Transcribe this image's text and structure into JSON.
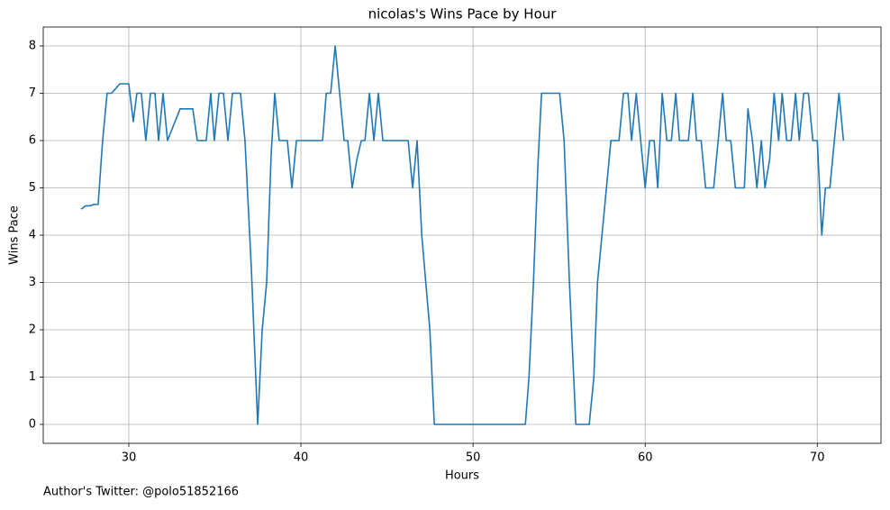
{
  "chart_data": {
    "type": "line",
    "title": "nicolas's Wins Pace by Hour",
    "xlabel": "Hours",
    "ylabel": "Wins Pace",
    "annotation": "Author's Twitter: @polo51852166",
    "x": [
      27.23,
      27.49,
      27.75,
      27.96,
      28.22,
      28.48,
      28.74,
      29.0,
      29.48,
      30.0,
      30.26,
      30.47,
      30.73,
      30.99,
      31.26,
      31.52,
      31.73,
      31.99,
      32.25,
      32.98,
      33.72,
      33.98,
      34.5,
      34.76,
      34.97,
      35.24,
      35.5,
      35.76,
      36.02,
      36.49,
      36.75,
      37.12,
      37.49,
      37.75,
      38.01,
      38.27,
      38.48,
      38.74,
      39.21,
      39.48,
      39.74,
      41.26,
      41.47,
      41.73,
      41.99,
      42.25,
      42.51,
      42.72,
      42.98,
      43.25,
      43.51,
      43.72,
      43.98,
      44.24,
      44.5,
      44.76,
      46.23,
      46.49,
      46.75,
      47.02,
      47.49,
      47.75,
      53.04,
      53.25,
      53.51,
      53.77,
      53.98,
      55.03,
      55.29,
      55.6,
      55.97,
      56.75,
      57.02,
      57.23,
      57.75,
      58.01,
      58.48,
      58.74,
      59.0,
      59.21,
      59.48,
      60.0,
      60.26,
      60.52,
      60.73,
      60.99,
      61.26,
      61.52,
      61.78,
      61.99,
      62.51,
      62.77,
      62.98,
      63.25,
      63.51,
      63.98,
      64.5,
      64.71,
      64.97,
      65.24,
      65.76,
      65.97,
      66.23,
      66.49,
      66.75,
      66.96,
      67.23,
      67.49,
      67.75,
      67.96,
      68.22,
      68.48,
      68.74,
      68.95,
      69.21,
      69.48,
      69.74,
      70.0,
      70.26,
      70.47,
      70.73,
      70.99,
      71.26,
      71.52
    ],
    "series": [
      {
        "name": "Wins Pace",
        "color": "#1f77b4",
        "values": [
          4.55,
          4.62,
          4.62,
          4.65,
          4.65,
          6.0,
          7.0,
          7.0,
          7.2,
          7.2,
          6.4,
          7.0,
          7.0,
          6.0,
          7.0,
          7.0,
          6.0,
          7.0,
          6.0,
          6.67,
          6.67,
          6.0,
          6.0,
          7.0,
          6.0,
          7.0,
          7.0,
          6.0,
          7.0,
          7.0,
          6.0,
          3.3,
          0,
          2.0,
          3.0,
          5.7,
          7.0,
          6.0,
          6.0,
          5.0,
          6.0,
          6.0,
          7.0,
          7.0,
          8.0,
          7.0,
          6.0,
          6.0,
          5.0,
          5.6,
          6.0,
          6.0,
          7.0,
          6.0,
          7.0,
          6.0,
          6.0,
          5.0,
          6.0,
          4.0,
          2.0,
          0,
          0,
          1.0,
          3.0,
          5.5,
          7.0,
          7.0,
          6.0,
          3.0,
          0,
          0,
          1.0,
          3.0,
          5.0,
          6.0,
          6.0,
          7.0,
          7.0,
          6.0,
          7.0,
          5.0,
          6.0,
          6.0,
          5.0,
          7.0,
          6.0,
          6.0,
          7.0,
          6.0,
          6.0,
          7.0,
          6.0,
          6.0,
          5.0,
          5.0,
          7.0,
          6.0,
          6.0,
          5.0,
          5.0,
          6.67,
          6.0,
          5.0,
          6.0,
          5.0,
          5.6,
          7.0,
          6.0,
          7.0,
          6.0,
          6.0,
          7.0,
          6.0,
          7.0,
          7.0,
          6.0,
          6.0,
          4.0,
          5.0,
          5.0,
          6.0,
          7.0,
          6.0
        ]
      }
    ],
    "xlim": [
      25.03,
      73.7
    ],
    "ylim": [
      -0.4,
      8.4
    ],
    "xticks": [
      30,
      40,
      50,
      60,
      70
    ],
    "yticks": [
      0,
      1,
      2,
      3,
      4,
      5,
      6,
      7,
      8
    ],
    "grid": true
  }
}
